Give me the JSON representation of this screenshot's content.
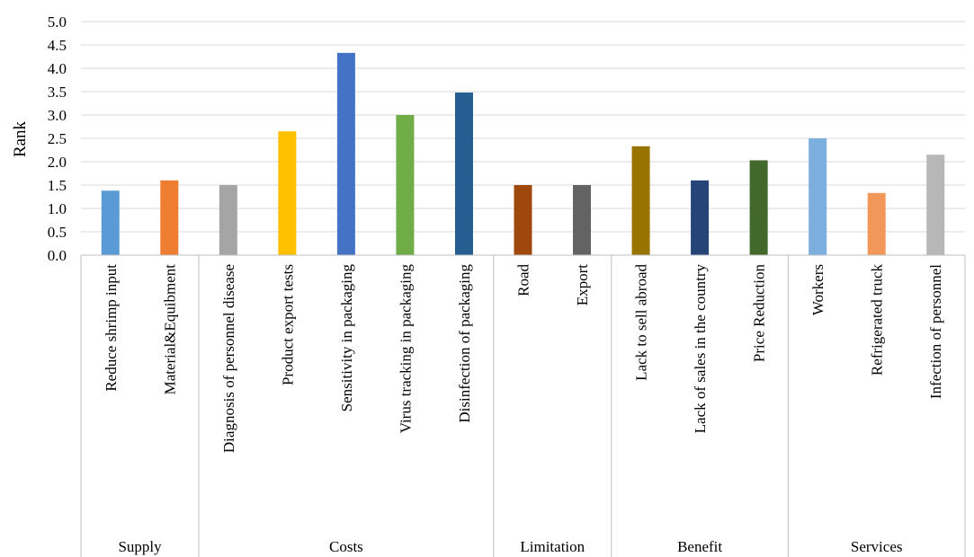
{
  "chart_data": {
    "type": "bar",
    "ylabel": "Rank",
    "xlabel": "",
    "ylim": [
      0,
      5
    ],
    "y_ticks": [
      "0.0",
      "0.5",
      "1.0",
      "1.5",
      "2.0",
      "2.5",
      "3.0",
      "3.5",
      "4.0",
      "4.5",
      "5.0"
    ],
    "grid": true,
    "categories": [
      "Reduce shrimp input",
      "Material&Equibment",
      "Diagnosis of personnel disease",
      "Product export tests",
      "Sensitivity in packaging",
      "Virus tracking in packaging",
      "Disinfection of packaging",
      "Road",
      "Export",
      "Lack to sell abroad",
      "Lack of sales in the country",
      "Price Reduction",
      "Workers",
      "Refrigerated truck",
      "Infection of personnel"
    ],
    "values": [
      1.38,
      1.6,
      1.5,
      2.65,
      4.33,
      3.0,
      3.48,
      1.5,
      1.5,
      2.33,
      1.6,
      2.03,
      2.5,
      1.33,
      2.15
    ],
    "colors": [
      "#5b9bd5",
      "#ed7d31",
      "#a5a5a5",
      "#ffc000",
      "#4472c4",
      "#70ad47",
      "#255e91",
      "#9e480e",
      "#636363",
      "#997300",
      "#264478",
      "#43682b",
      "#7cafdd",
      "#f1975a",
      "#b7b7b7"
    ],
    "groups": [
      {
        "label": "Supply",
        "count": 2
      },
      {
        "label": "Costs",
        "count": 5
      },
      {
        "label": "Limitation",
        "count": 2
      },
      {
        "label": "Benefit",
        "count": 3
      },
      {
        "label": "Services",
        "count": 3
      }
    ]
  }
}
